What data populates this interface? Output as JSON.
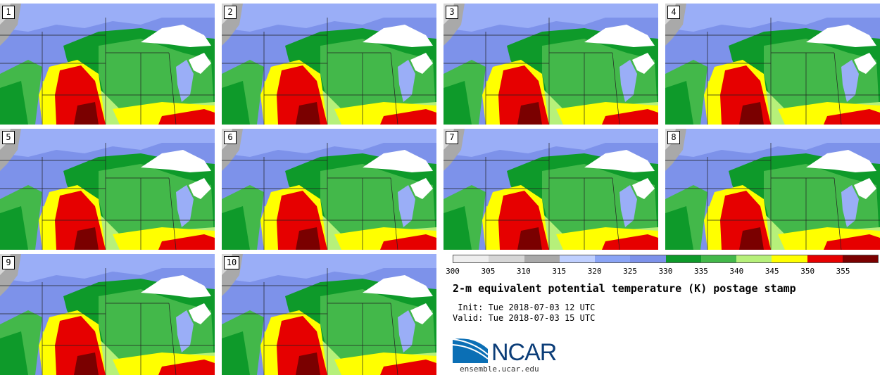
{
  "panels": [
    {
      "label": "1"
    },
    {
      "label": "2"
    },
    {
      "label": "3"
    },
    {
      "label": "4"
    },
    {
      "label": "5"
    },
    {
      "label": "6"
    },
    {
      "label": "7"
    },
    {
      "label": "8"
    },
    {
      "label": "9"
    },
    {
      "label": "10"
    }
  ],
  "legend": {
    "ticks": [
      "300",
      "305",
      "310",
      "315",
      "320",
      "325",
      "330",
      "335",
      "340",
      "345",
      "350",
      "355"
    ],
    "colors": [
      "#eeeeee",
      "#d6d6d6",
      "#a9a9a9",
      "#bfcfff",
      "#8aa4f5",
      "#7d92ea",
      "#0e9a2a",
      "#43b84a",
      "#b6f07a",
      "#ffff00",
      "#e60000",
      "#7a0000"
    ]
  },
  "title": "2-m equivalent potential temperature (K) postage stamp",
  "init": " Init: Tue 2018-07-03 12 UTC",
  "valid": "Valid: Tue 2018-07-03 15 UTC",
  "logo": {
    "name": "NCAR",
    "url": "ensemble.ucar.edu"
  }
}
